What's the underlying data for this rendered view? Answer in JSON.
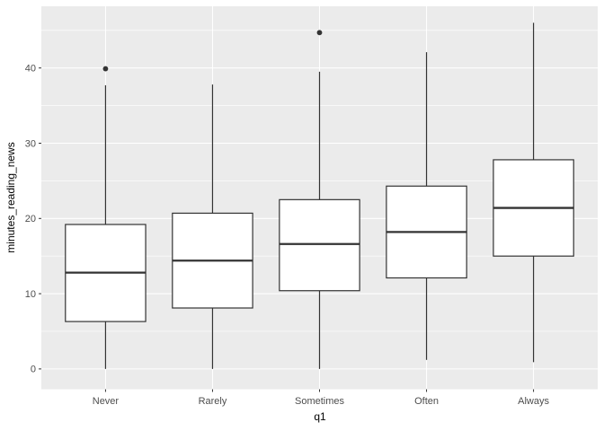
{
  "chart_data": {
    "type": "boxplot",
    "title": "",
    "xlabel": "q1",
    "ylabel": "minutes_reading_news",
    "categories": [
      "Never",
      "Rarely",
      "Sometimes",
      "Often",
      "Always"
    ],
    "y_ticks": [
      0,
      10,
      20,
      30,
      40
    ],
    "y_minor_ticks": [
      5,
      15,
      25,
      35,
      45
    ],
    "ylim": [
      -2.7,
      48.2
    ],
    "grid": "on",
    "legend": "none",
    "boxes": [
      {
        "category": "Never",
        "whisker_low": 0,
        "q1": 6.3,
        "median": 12.8,
        "q3": 19.2,
        "whisker_high": 37.7,
        "outliers": [
          39.9
        ]
      },
      {
        "category": "Rarely",
        "whisker_low": 0,
        "q1": 8.1,
        "median": 14.4,
        "q3": 20.7,
        "whisker_high": 37.8,
        "outliers": []
      },
      {
        "category": "Sometimes",
        "whisker_low": 0,
        "q1": 10.4,
        "median": 16.6,
        "q3": 22.5,
        "whisker_high": 39.5,
        "outliers": [
          44.7
        ]
      },
      {
        "category": "Often",
        "whisker_low": 1.2,
        "q1": 12.1,
        "median": 18.2,
        "q3": 24.3,
        "whisker_high": 42.1,
        "outliers": []
      },
      {
        "category": "Always",
        "whisker_low": 0.9,
        "q1": 15.0,
        "median": 21.4,
        "q3": 27.8,
        "whisker_high": 46.0,
        "outliers": []
      }
    ],
    "colors": {
      "panel_background": "#EBEBEB",
      "gridline": "#FFFFFF",
      "box_fill": "#FFFFFF",
      "box_stroke": "#333333",
      "outlier": "#333333",
      "tick_mark": "#333333",
      "tick_label": "#4D4D4D",
      "axis_title": "#000000",
      "figure_background": "#FFFFFF"
    }
  }
}
